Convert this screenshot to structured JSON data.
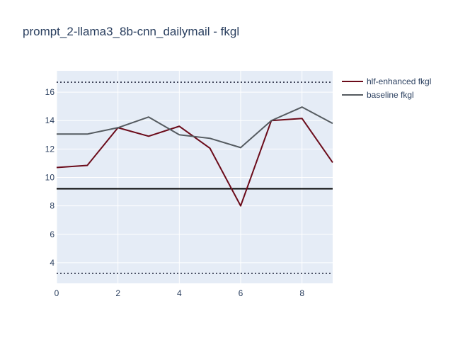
{
  "chart_data": {
    "type": "line",
    "title": "prompt_2-llama3_8b-cnn_dailymail - fkgl",
    "xlabel": "",
    "ylabel": "",
    "x": [
      0,
      1,
      2,
      3,
      4,
      5,
      6,
      7,
      8,
      9
    ],
    "xlim": [
      0,
      9
    ],
    "ylim": [
      2.55,
      17.5
    ],
    "x_ticks": [
      0,
      2,
      4,
      6,
      8
    ],
    "y_ticks": [
      4,
      6,
      8,
      10,
      12,
      14,
      16
    ],
    "grid": true,
    "legend_position": "top-right",
    "series": [
      {
        "name": "hlf-enhanced fkgl",
        "color": "#6b0b1a",
        "values": [
          10.7,
          10.85,
          13.5,
          12.9,
          13.6,
          12.05,
          8.0,
          14.0,
          14.15,
          11.05
        ]
      },
      {
        "name": "baseline fkgl",
        "color": "#555b60",
        "values": [
          13.05,
          13.05,
          13.5,
          14.25,
          13.0,
          12.75,
          12.1,
          14.0,
          14.95,
          13.8
        ]
      }
    ],
    "reference_lines": [
      {
        "y": 16.7,
        "style": "dotted",
        "color": "#2a2f45"
      },
      {
        "y": 9.2,
        "style": "solid",
        "color": "#000000"
      },
      {
        "y": 3.25,
        "style": "dotted",
        "color": "#2a2f45"
      }
    ]
  }
}
